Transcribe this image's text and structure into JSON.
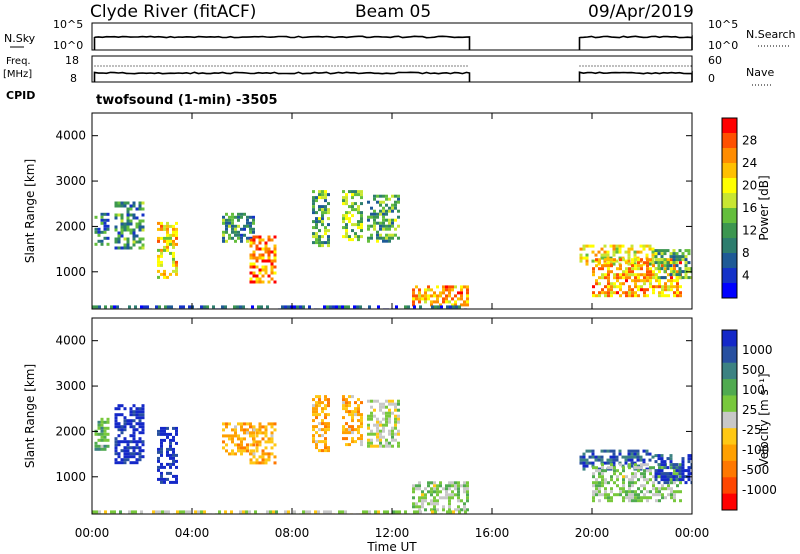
{
  "header": {
    "station": "Clyde River (fitACF)",
    "beam": "Beam 05",
    "date": "09/Apr/2019"
  },
  "summary_panels": {
    "nsky_label": "N.Sky",
    "nsky_ticks": [
      "10^5",
      "10^0"
    ],
    "nsearch_label": "N.Search",
    "nsearch_ticks": [
      "10^5",
      "10^0"
    ],
    "freq_label_top": "Freq.",
    "freq_label_bottom": "[MHz]",
    "freq_ticks": [
      "18",
      "8"
    ],
    "nave_label": "Nave",
    "nave_ticks": [
      "60",
      "0"
    ],
    "cpid_label": "CPID",
    "cpid_text": "twofsound (1-min) -3505"
  },
  "colorbars": {
    "power": {
      "label": "Power [dB]",
      "ticks": [
        "28",
        "24",
        "20",
        "16",
        "12",
        "8",
        "4"
      ],
      "colors": [
        "#ff0000",
        "#ff5000",
        "#ff8c00",
        "#ffc000",
        "#ffff00",
        "#c8e632",
        "#64be3c",
        "#3c9650",
        "#2d7d6e",
        "#1e5a96",
        "#1432c8",
        "#0000ff"
      ]
    },
    "velocity": {
      "label": "Velocity [m s⁻¹]",
      "ticks": [
        "1000",
        "500",
        "100",
        "25",
        "-25",
        "-100",
        "-500",
        "-1000"
      ],
      "colors": [
        "#1428c8",
        "#2850a0",
        "#3c8282",
        "#50aa50",
        "#78c83c",
        "#c8c8c8",
        "#ffc814",
        "#ffa000",
        "#ff7800",
        "#ff4600",
        "#ff0000"
      ]
    }
  },
  "axes": {
    "y_label": "Slant Range [km]",
    "y_ticks": [
      "4000",
      "3000",
      "2000",
      "1000"
    ],
    "x_label": "Time UT",
    "x_ticks": [
      "00:00",
      "04:00",
      "08:00",
      "12:00",
      "16:00",
      "20:00",
      "00:00"
    ]
  },
  "chart_data": [
    {
      "type": "heatmap",
      "title": "Power",
      "xlabel": "Time UT",
      "ylabel": "Slant Range [km]",
      "xlim": [
        0,
        24
      ],
      "ylim": [
        180,
        4500
      ],
      "value_label": "Power [dB]",
      "value_range": [
        0,
        30
      ],
      "patches": [
        {
          "t0": 0.1,
          "t1": 0.6,
          "r0": 1600,
          "r1": 2300,
          "v": 8
        },
        {
          "t0": 0.9,
          "t1": 2.0,
          "r0": 1500,
          "r1": 2550,
          "v": 10
        },
        {
          "t0": 2.6,
          "t1": 3.4,
          "r0": 900,
          "r1": 2100,
          "v": 20
        },
        {
          "t0": 5.2,
          "t1": 6.5,
          "r0": 1700,
          "r1": 2300,
          "v": 10
        },
        {
          "t0": 6.3,
          "t1": 7.3,
          "r0": 800,
          "r1": 1800,
          "v": 24
        },
        {
          "t0": 8.8,
          "t1": 9.5,
          "r0": 1600,
          "r1": 2800,
          "v": 12
        },
        {
          "t0": 10.0,
          "t1": 10.8,
          "r0": 1700,
          "r1": 2800,
          "v": 14
        },
        {
          "t0": 11.0,
          "t1": 12.3,
          "r0": 1700,
          "r1": 2700,
          "v": 12
        },
        {
          "t0": 12.8,
          "t1": 15.0,
          "r0": 250,
          "r1": 700,
          "v": 22
        },
        {
          "t0": 0.0,
          "t1": 15.0,
          "r0": 180,
          "r1": 260,
          "v": 6
        },
        {
          "t0": 19.5,
          "t1": 22.5,
          "r0": 1150,
          "r1": 1600,
          "v": 18
        },
        {
          "t0": 20.0,
          "t1": 23.5,
          "r0": 500,
          "r1": 1300,
          "v": 22
        },
        {
          "t0": 22.5,
          "t1": 24.0,
          "r0": 900,
          "r1": 1500,
          "v": 12
        }
      ]
    },
    {
      "type": "heatmap",
      "title": "Velocity",
      "xlabel": "Time UT",
      "ylabel": "Slant Range [km]",
      "xlim": [
        0,
        24
      ],
      "ylim": [
        180,
        4500
      ],
      "value_label": "Velocity [m s⁻¹]",
      "value_range": [
        -1000,
        1000
      ],
      "patches": [
        {
          "t0": 0.1,
          "t1": 0.6,
          "r0": 1600,
          "r1": 2300,
          "v": 300
        },
        {
          "t0": 0.9,
          "t1": 2.0,
          "r0": 1300,
          "r1": 2600,
          "v": 900
        },
        {
          "t0": 2.6,
          "t1": 3.4,
          "r0": 900,
          "r1": 2100,
          "v": 900
        },
        {
          "t0": 5.2,
          "t1": 6.5,
          "r0": 1500,
          "r1": 2200,
          "v": -300
        },
        {
          "t0": 6.3,
          "t1": 7.3,
          "r0": 1300,
          "r1": 2200,
          "v": -300
        },
        {
          "t0": 8.8,
          "t1": 9.5,
          "r0": 1600,
          "r1": 2800,
          "v": -300
        },
        {
          "t0": 10.0,
          "t1": 10.8,
          "r0": 1700,
          "r1": 2800,
          "v": -300
        },
        {
          "t0": 11.0,
          "t1": 12.3,
          "r0": 1700,
          "r1": 2700,
          "v": 50
        },
        {
          "t0": 12.8,
          "t1": 15.0,
          "r0": 250,
          "r1": 900,
          "v": 150
        },
        {
          "t0": 0.0,
          "t1": 15.0,
          "r0": 180,
          "r1": 260,
          "v": 40
        },
        {
          "t0": 19.5,
          "t1": 22.5,
          "r0": 1150,
          "r1": 1600,
          "v": 700
        },
        {
          "t0": 20.0,
          "t1": 23.5,
          "r0": 500,
          "r1": 1300,
          "v": 150
        },
        {
          "t0": 22.5,
          "t1": 24.0,
          "r0": 900,
          "r1": 1500,
          "v": 800
        }
      ]
    }
  ]
}
